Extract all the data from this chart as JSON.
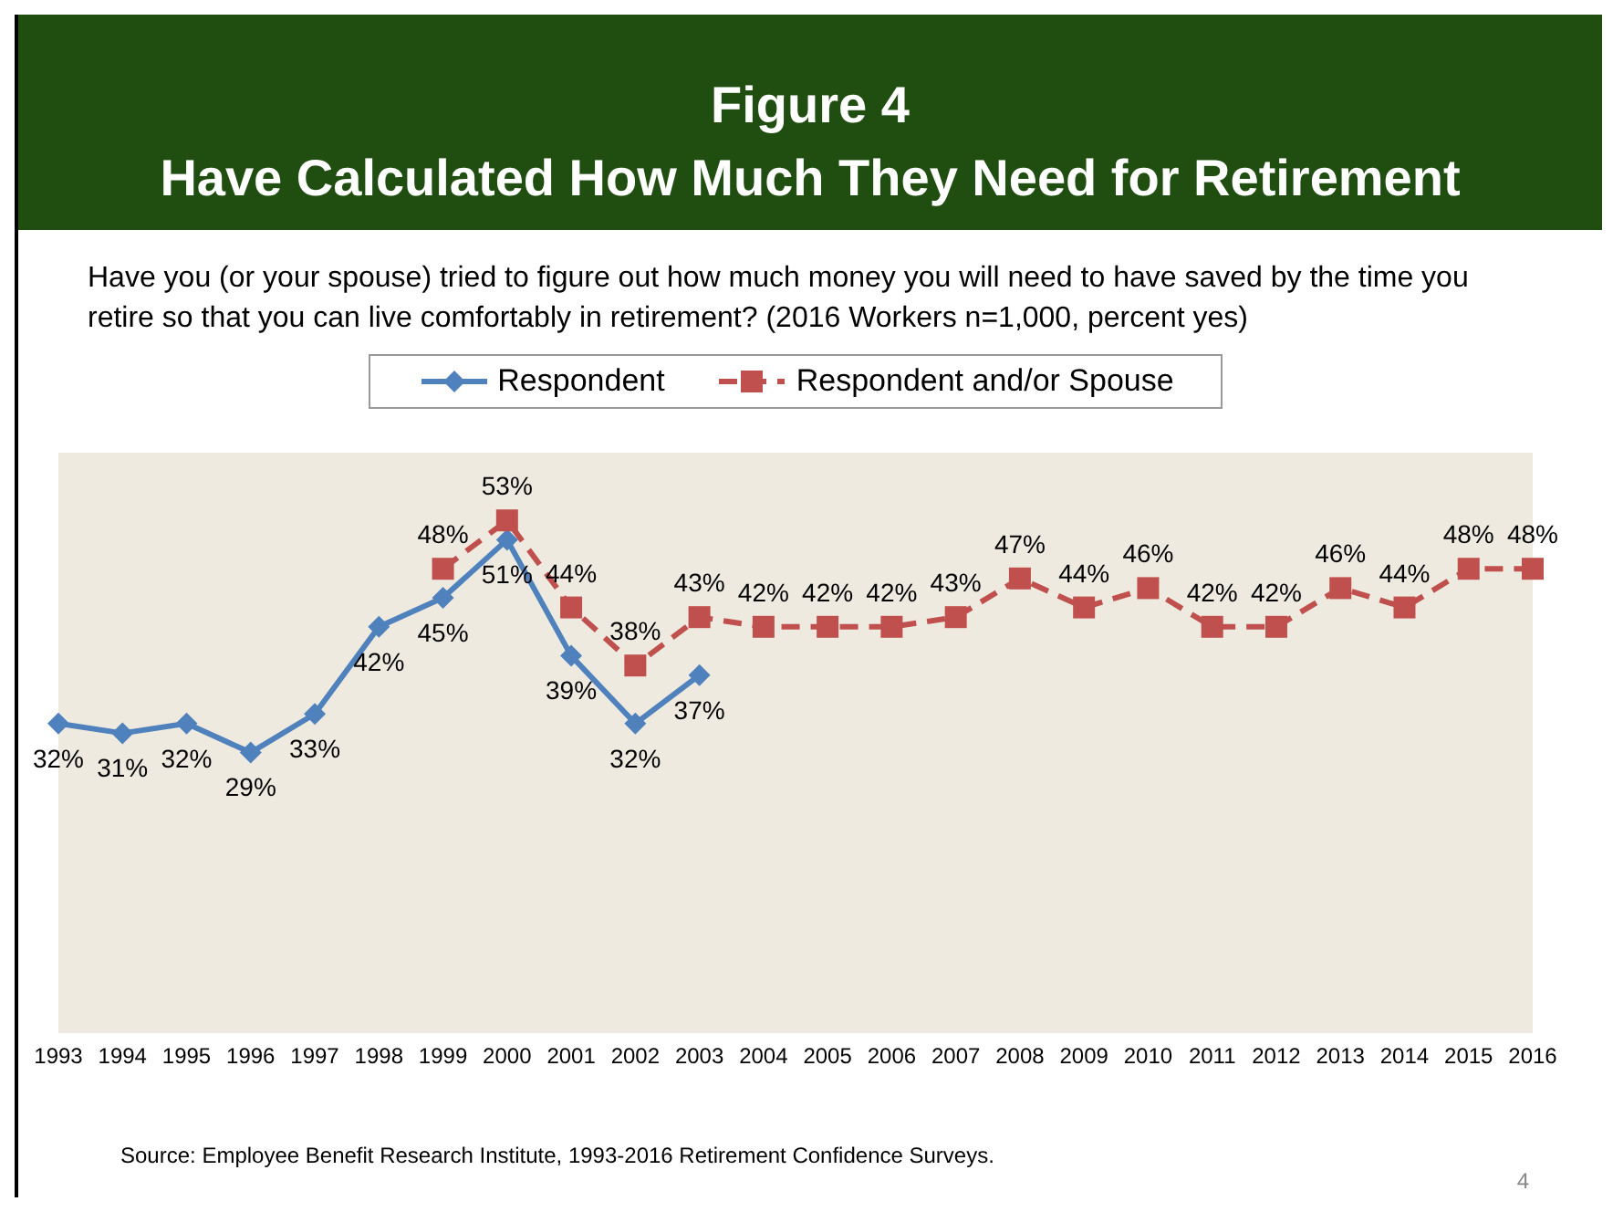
{
  "chart_data": {
    "type": "line",
    "title": "Figure 4",
    "subtitle": "Have Calculated How Much They Need for Retirement",
    "annotations": [
      "Have you (or your spouse) tried to figure out how much money you will need to have saved by the time you retire so that you can live comfortably in retirement?  (2016 Workers n=1,000, percent yes)",
      "Source:  Employee Benefit Research Institute, 1993-2016 Retirement Confidence Surveys.",
      "4"
    ],
    "categories": [
      "1993",
      "1994",
      "1995",
      "1996",
      "1997",
      "1998",
      "1999",
      "2000",
      "2001",
      "2002",
      "2003",
      "2004",
      "2005",
      "2006",
      "2007",
      "2008",
      "2009",
      "2010",
      "2011",
      "2012",
      "2013",
      "2014",
      "2015",
      "2016"
    ],
    "series": [
      {
        "name": "Respondent",
        "color": "#4f81bd",
        "marker": "diamond",
        "line_style": "solid",
        "values": [
          32,
          31,
          32,
          29,
          33,
          42,
          45,
          51,
          39,
          32,
          37,
          null,
          null,
          null,
          null,
          null,
          null,
          null,
          null,
          null,
          null,
          null,
          null,
          null
        ],
        "value_labels": [
          "32%",
          "31%",
          "32%",
          "29%",
          "33%",
          "42%",
          "45%",
          "51%",
          "39%",
          "32%",
          "37%",
          null,
          null,
          null,
          null,
          null,
          null,
          null,
          null,
          null,
          null,
          null,
          null,
          null
        ]
      },
      {
        "name": "Respondent and/or Spouse",
        "color": "#c0504d",
        "marker": "square",
        "line_style": "dashed",
        "values": [
          null,
          null,
          null,
          null,
          null,
          null,
          48,
          53,
          44,
          38,
          43,
          42,
          42,
          42,
          43,
          47,
          44,
          46,
          42,
          42,
          46,
          44,
          48,
          48
        ],
        "value_labels": [
          null,
          null,
          null,
          null,
          null,
          null,
          "48%",
          "53%",
          "44%",
          "38%",
          "43%",
          "42%",
          "42%",
          "42%",
          "43%",
          "47%",
          "44%",
          "46%",
          "42%",
          "42%",
          "46%",
          "44%",
          "48%",
          "48%"
        ]
      }
    ],
    "legend": "top",
    "grid": false,
    "tick_labels": "x"
  }
}
